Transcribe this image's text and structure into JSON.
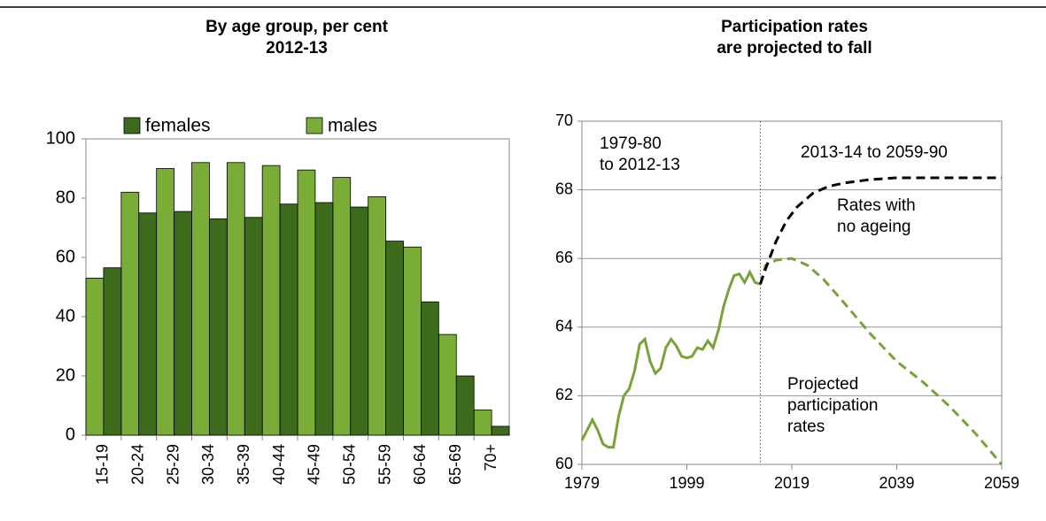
{
  "chart_data": [
    {
      "type": "bar",
      "title": [
        "By age group, per cent",
        "2012-13"
      ],
      "categories": [
        "15-19",
        "20-24",
        "25-29",
        "30-34",
        "35-39",
        "40-44",
        "45-49",
        "50-54",
        "55-59",
        "60-64",
        "65-69",
        "70+"
      ],
      "series": [
        {
          "name": "females",
          "color": "#3d6b1c",
          "values": [
            56.5,
            75,
            75.5,
            73,
            73.5,
            78,
            78.5,
            77,
            65.5,
            45,
            20,
            3
          ]
        },
        {
          "name": "males",
          "color": "#7aac38",
          "values": [
            53,
            82,
            90,
            92,
            92,
            91,
            89.5,
            87,
            80.5,
            63.5,
            34,
            8.5
          ]
        }
      ],
      "ylim": [
        0,
        100
      ],
      "yticks": [
        0,
        20,
        40,
        60,
        80,
        100
      ],
      "grid": false
    },
    {
      "type": "line",
      "title": [
        "Participation rates",
        "are projected to fall"
      ],
      "xlim": [
        1979,
        2059
      ],
      "xticks": [
        1979,
        1999,
        2019,
        2039,
        2059
      ],
      "ylim": [
        60,
        70
      ],
      "yticks": [
        60,
        62,
        64,
        66,
        68,
        70
      ],
      "grid": true,
      "series": [
        {
          "color": "#77a339",
          "dash": false,
          "x": [
            1979,
            1980,
            1981,
            1982,
            1983,
            1984,
            1985,
            1986,
            1987,
            1988,
            1989,
            1990,
            1991,
            1992,
            1993,
            1994,
            1995,
            1996,
            1997,
            1998,
            1999,
            2000,
            2001,
            2002,
            2003,
            2004,
            2005,
            2006,
            2007,
            2008,
            2009,
            2010,
            2011,
            2012,
            2013
          ],
          "values": [
            60.7,
            61.0,
            61.3,
            61.0,
            60.6,
            60.5,
            60.5,
            61.4,
            62.0,
            62.2,
            62.7,
            63.5,
            63.65,
            63.0,
            62.65,
            62.8,
            63.4,
            63.65,
            63.45,
            63.15,
            63.1,
            63.15,
            63.4,
            63.35,
            63.6,
            63.4,
            63.9,
            64.6,
            65.1,
            65.5,
            65.55,
            65.3,
            65.6,
            65.3,
            65.25
          ]
        },
        {
          "color": "#77a339",
          "dash": true,
          "x": [
            2013,
            2014,
            2016,
            2019,
            2022,
            2025,
            2029,
            2034,
            2039,
            2044,
            2049,
            2054,
            2059
          ],
          "values": [
            65.25,
            65.8,
            65.95,
            66.0,
            65.8,
            65.4,
            64.7,
            63.8,
            63.0,
            62.4,
            61.7,
            60.9,
            60.0
          ]
        },
        {
          "color": "#000000",
          "dash": true,
          "x": [
            2013,
            2014,
            2016,
            2018,
            2020,
            2023,
            2026,
            2029,
            2034,
            2039,
            2049,
            2059
          ],
          "values": [
            65.25,
            65.7,
            66.5,
            67.1,
            67.5,
            67.9,
            68.1,
            68.2,
            68.3,
            68.35,
            68.35,
            68.35
          ]
        }
      ],
      "annotations": [
        {
          "text": [
            "1979-80",
            "to 2012-13"
          ]
        },
        {
          "text": [
            "2013-14 to 2059-90"
          ]
        },
        {
          "text": [
            "Rates with",
            "no ageing"
          ]
        },
        {
          "text": [
            "Projected",
            "participation",
            "rates"
          ]
        }
      ]
    }
  ]
}
